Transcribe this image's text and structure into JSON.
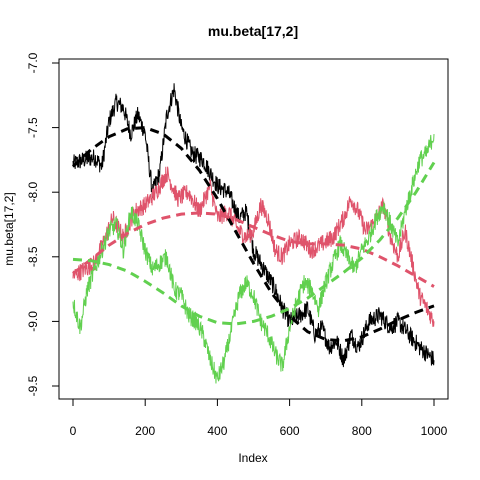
{
  "chart_data": {
    "type": "line",
    "title": "mu.beta[17,2]",
    "xlabel": "Index",
    "ylabel": "mu.beta[17,2]",
    "xlim": [
      0,
      1000
    ],
    "ylim": [
      -9.5,
      -7.0
    ],
    "x_ticks": [
      0,
      200,
      400,
      600,
      800,
      1000
    ],
    "y_ticks": [
      -9.5,
      -9.0,
      -8.5,
      -8.0,
      -7.5,
      -7.0
    ],
    "x_tick_labels": [
      "0",
      "200",
      "400",
      "600",
      "800",
      "1000"
    ],
    "y_tick_labels": [
      "-9.5",
      "-9.0",
      "-8.5",
      "-8.0",
      "-7.5",
      "-7.0"
    ],
    "grid": false,
    "legend": "none",
    "series": [
      {
        "color": "#000000",
        "style": "trace",
        "points": [
          [
            0,
            -7.78
          ],
          [
            30,
            -7.75
          ],
          [
            60,
            -7.73
          ],
          [
            80,
            -7.8
          ],
          [
            100,
            -7.45
          ],
          [
            120,
            -7.3
          ],
          [
            140,
            -7.35
          ],
          [
            160,
            -7.55
          ],
          [
            180,
            -7.4
          ],
          [
            200,
            -7.55
          ],
          [
            220,
            -8.0
          ],
          [
            240,
            -7.85
          ],
          [
            260,
            -7.4
          ],
          [
            280,
            -7.2
          ],
          [
            300,
            -7.5
          ],
          [
            330,
            -7.7
          ],
          [
            360,
            -7.75
          ],
          [
            380,
            -7.85
          ],
          [
            400,
            -7.95
          ],
          [
            430,
            -8.0
          ],
          [
            460,
            -8.2
          ],
          [
            480,
            -8.15
          ],
          [
            500,
            -8.45
          ],
          [
            530,
            -8.6
          ],
          [
            560,
            -8.75
          ],
          [
            580,
            -8.9
          ],
          [
            600,
            -9.0
          ],
          [
            630,
            -8.95
          ],
          [
            650,
            -8.9
          ],
          [
            670,
            -9.1
          ],
          [
            690,
            -9.05
          ],
          [
            710,
            -9.2
          ],
          [
            730,
            -9.15
          ],
          [
            750,
            -9.3
          ],
          [
            770,
            -9.1
          ],
          [
            790,
            -9.2
          ],
          [
            820,
            -9.0
          ],
          [
            850,
            -8.95
          ],
          [
            880,
            -9.05
          ],
          [
            900,
            -9.0
          ],
          [
            930,
            -9.1
          ],
          [
            960,
            -9.2
          ],
          [
            980,
            -9.25
          ],
          [
            1000,
            -9.3
          ]
        ]
      },
      {
        "color": "#DF536B",
        "style": "trace",
        "points": [
          [
            0,
            -8.65
          ],
          [
            30,
            -8.6
          ],
          [
            60,
            -8.55
          ],
          [
            90,
            -8.35
          ],
          [
            110,
            -8.2
          ],
          [
            140,
            -8.35
          ],
          [
            170,
            -8.15
          ],
          [
            200,
            -8.1
          ],
          [
            230,
            -8.0
          ],
          [
            260,
            -7.85
          ],
          [
            290,
            -8.05
          ],
          [
            320,
            -8.0
          ],
          [
            350,
            -8.15
          ],
          [
            380,
            -7.95
          ],
          [
            400,
            -8.2
          ],
          [
            430,
            -8.15
          ],
          [
            460,
            -8.3
          ],
          [
            480,
            -8.35
          ],
          [
            500,
            -8.3
          ],
          [
            520,
            -8.1
          ],
          [
            540,
            -8.2
          ],
          [
            560,
            -8.45
          ],
          [
            580,
            -8.5
          ],
          [
            600,
            -8.4
          ],
          [
            630,
            -8.35
          ],
          [
            660,
            -8.45
          ],
          [
            690,
            -8.4
          ],
          [
            720,
            -8.35
          ],
          [
            750,
            -8.2
          ],
          [
            770,
            -8.05
          ],
          [
            790,
            -8.15
          ],
          [
            810,
            -8.3
          ],
          [
            830,
            -8.25
          ],
          [
            860,
            -8.1
          ],
          [
            880,
            -8.35
          ],
          [
            900,
            -8.5
          ],
          [
            920,
            -8.3
          ],
          [
            940,
            -8.55
          ],
          [
            960,
            -8.8
          ],
          [
            980,
            -8.9
          ],
          [
            1000,
            -9.0
          ]
        ]
      },
      {
        "color": "#61D04F",
        "style": "trace",
        "points": [
          [
            0,
            -8.85
          ],
          [
            20,
            -9.05
          ],
          [
            40,
            -8.75
          ],
          [
            60,
            -8.6
          ],
          [
            80,
            -8.45
          ],
          [
            100,
            -8.3
          ],
          [
            120,
            -8.25
          ],
          [
            140,
            -8.45
          ],
          [
            160,
            -8.15
          ],
          [
            180,
            -8.25
          ],
          [
            200,
            -8.45
          ],
          [
            220,
            -8.6
          ],
          [
            240,
            -8.55
          ],
          [
            260,
            -8.5
          ],
          [
            280,
            -8.75
          ],
          [
            300,
            -8.8
          ],
          [
            320,
            -8.95
          ],
          [
            340,
            -9.0
          ],
          [
            360,
            -9.1
          ],
          [
            380,
            -9.3
          ],
          [
            400,
            -9.45
          ],
          [
            420,
            -9.3
          ],
          [
            440,
            -9.05
          ],
          [
            460,
            -8.8
          ],
          [
            480,
            -8.7
          ],
          [
            500,
            -8.8
          ],
          [
            520,
            -9.0
          ],
          [
            540,
            -9.1
          ],
          [
            560,
            -9.25
          ],
          [
            580,
            -9.35
          ],
          [
            600,
            -9.05
          ],
          [
            620,
            -8.85
          ],
          [
            640,
            -8.7
          ],
          [
            660,
            -8.75
          ],
          [
            680,
            -8.9
          ],
          [
            700,
            -8.7
          ],
          [
            720,
            -8.55
          ],
          [
            740,
            -8.4
          ],
          [
            760,
            -8.5
          ],
          [
            780,
            -8.6
          ],
          [
            800,
            -8.45
          ],
          [
            820,
            -8.35
          ],
          [
            840,
            -8.2
          ],
          [
            860,
            -8.1
          ],
          [
            880,
            -8.25
          ],
          [
            900,
            -8.4
          ],
          [
            920,
            -8.15
          ],
          [
            940,
            -7.95
          ],
          [
            960,
            -7.75
          ],
          [
            980,
            -7.7
          ],
          [
            1000,
            -7.55
          ]
        ]
      },
      {
        "color": "#000000",
        "style": "smooth",
        "points": [
          [
            0,
            -7.8
          ],
          [
            50,
            -7.67
          ],
          [
            100,
            -7.57
          ],
          [
            150,
            -7.51
          ],
          [
            200,
            -7.5
          ],
          [
            250,
            -7.55
          ],
          [
            300,
            -7.66
          ],
          [
            350,
            -7.83
          ],
          [
            400,
            -8.05
          ],
          [
            450,
            -8.3
          ],
          [
            500,
            -8.55
          ],
          [
            550,
            -8.78
          ],
          [
            600,
            -8.96
          ],
          [
            650,
            -9.08
          ],
          [
            700,
            -9.14
          ],
          [
            750,
            -9.15
          ],
          [
            800,
            -9.12
          ],
          [
            850,
            -9.06
          ],
          [
            900,
            -8.99
          ],
          [
            950,
            -8.93
          ],
          [
            1000,
            -8.88
          ]
        ]
      },
      {
        "color": "#DF536B",
        "style": "smooth",
        "points": [
          [
            0,
            -8.63
          ],
          [
            50,
            -8.52
          ],
          [
            100,
            -8.41
          ],
          [
            150,
            -8.32
          ],
          [
            200,
            -8.25
          ],
          [
            250,
            -8.2
          ],
          [
            300,
            -8.17
          ],
          [
            350,
            -8.16
          ],
          [
            400,
            -8.17
          ],
          [
            450,
            -8.21
          ],
          [
            500,
            -8.27
          ],
          [
            550,
            -8.33
          ],
          [
            600,
            -8.38
          ],
          [
            650,
            -8.4
          ],
          [
            700,
            -8.4
          ],
          [
            750,
            -8.41
          ],
          [
            800,
            -8.44
          ],
          [
            850,
            -8.5
          ],
          [
            900,
            -8.57
          ],
          [
            950,
            -8.65
          ],
          [
            1000,
            -8.73
          ]
        ]
      },
      {
        "color": "#61D04F",
        "style": "smooth",
        "points": [
          [
            0,
            -8.52
          ],
          [
            50,
            -8.53
          ],
          [
            100,
            -8.56
          ],
          [
            150,
            -8.61
          ],
          [
            200,
            -8.69
          ],
          [
            250,
            -8.78
          ],
          [
            300,
            -8.88
          ],
          [
            350,
            -8.96
          ],
          [
            400,
            -9.01
          ],
          [
            450,
            -9.02
          ],
          [
            500,
            -9.0
          ],
          [
            550,
            -8.96
          ],
          [
            600,
            -8.9
          ],
          [
            650,
            -8.82
          ],
          [
            700,
            -8.72
          ],
          [
            750,
            -8.62
          ],
          [
            800,
            -8.51
          ],
          [
            850,
            -8.37
          ],
          [
            900,
            -8.2
          ],
          [
            950,
            -8.0
          ],
          [
            1000,
            -7.77
          ]
        ]
      }
    ]
  }
}
